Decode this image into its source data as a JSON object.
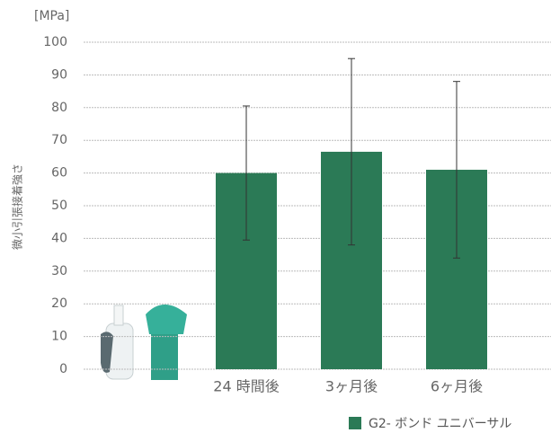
{
  "chart_data": {
    "type": "bar",
    "y_unit": "[MPa]",
    "y_axis_label": "微小引張接着強さ",
    "categories": [
      "24 時間後",
      "3ヶ月後",
      "6ヶ月後"
    ],
    "series": [
      {
        "name": "G2- ボンド ユニバーサル",
        "color": "#2b7a56",
        "values": [
          60,
          66.5,
          61
        ],
        "errors": [
          20.5,
          28.5,
          27
        ]
      }
    ],
    "ylim": [
      0,
      100
    ],
    "yticks": [
      0,
      10,
      20,
      30,
      40,
      50,
      60,
      70,
      80,
      90,
      100
    ],
    "grid": true
  }
}
